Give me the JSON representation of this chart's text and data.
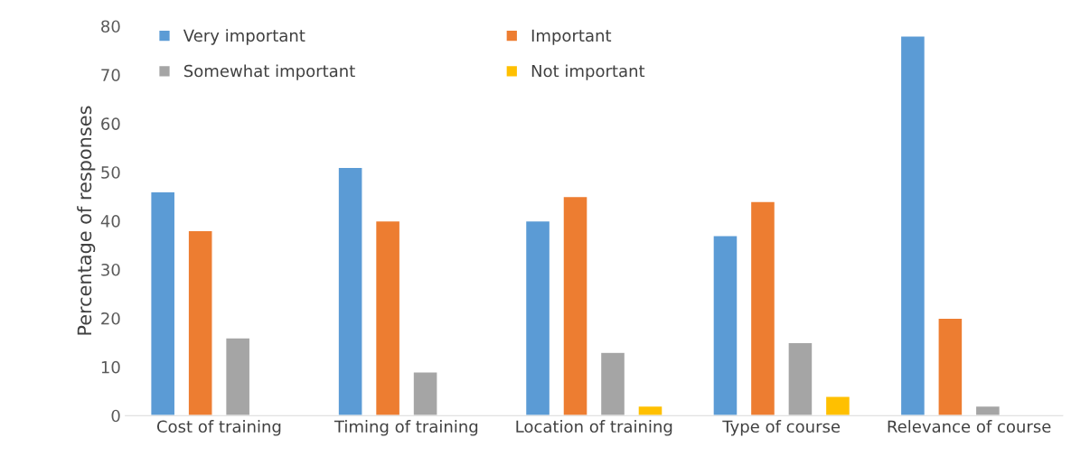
{
  "chart_data": {
    "type": "bar",
    "ylabel": "Percentage of responses",
    "categories": [
      "Cost of training",
      "Timing of training",
      "Location of training",
      "Type of course",
      "Relevance of course"
    ],
    "series": [
      {
        "name": "Very important",
        "color": "#5b9bd5",
        "values": [
          46,
          51,
          40,
          37,
          78
        ]
      },
      {
        "name": "Important",
        "color": "#ed7d31",
        "values": [
          38,
          40,
          45,
          44,
          20
        ]
      },
      {
        "name": "Somewhat important",
        "color": "#a5a5a5",
        "values": [
          16,
          9,
          13,
          15,
          2
        ]
      },
      {
        "name": "Not important",
        "color": "#ffc000",
        "values": [
          null,
          null,
          2,
          4,
          null
        ]
      }
    ],
    "ylim": [
      0,
      80
    ],
    "yticks": [
      0,
      10,
      20,
      30,
      40,
      50,
      60,
      70,
      80
    ],
    "grid": false,
    "legend": "top left"
  }
}
